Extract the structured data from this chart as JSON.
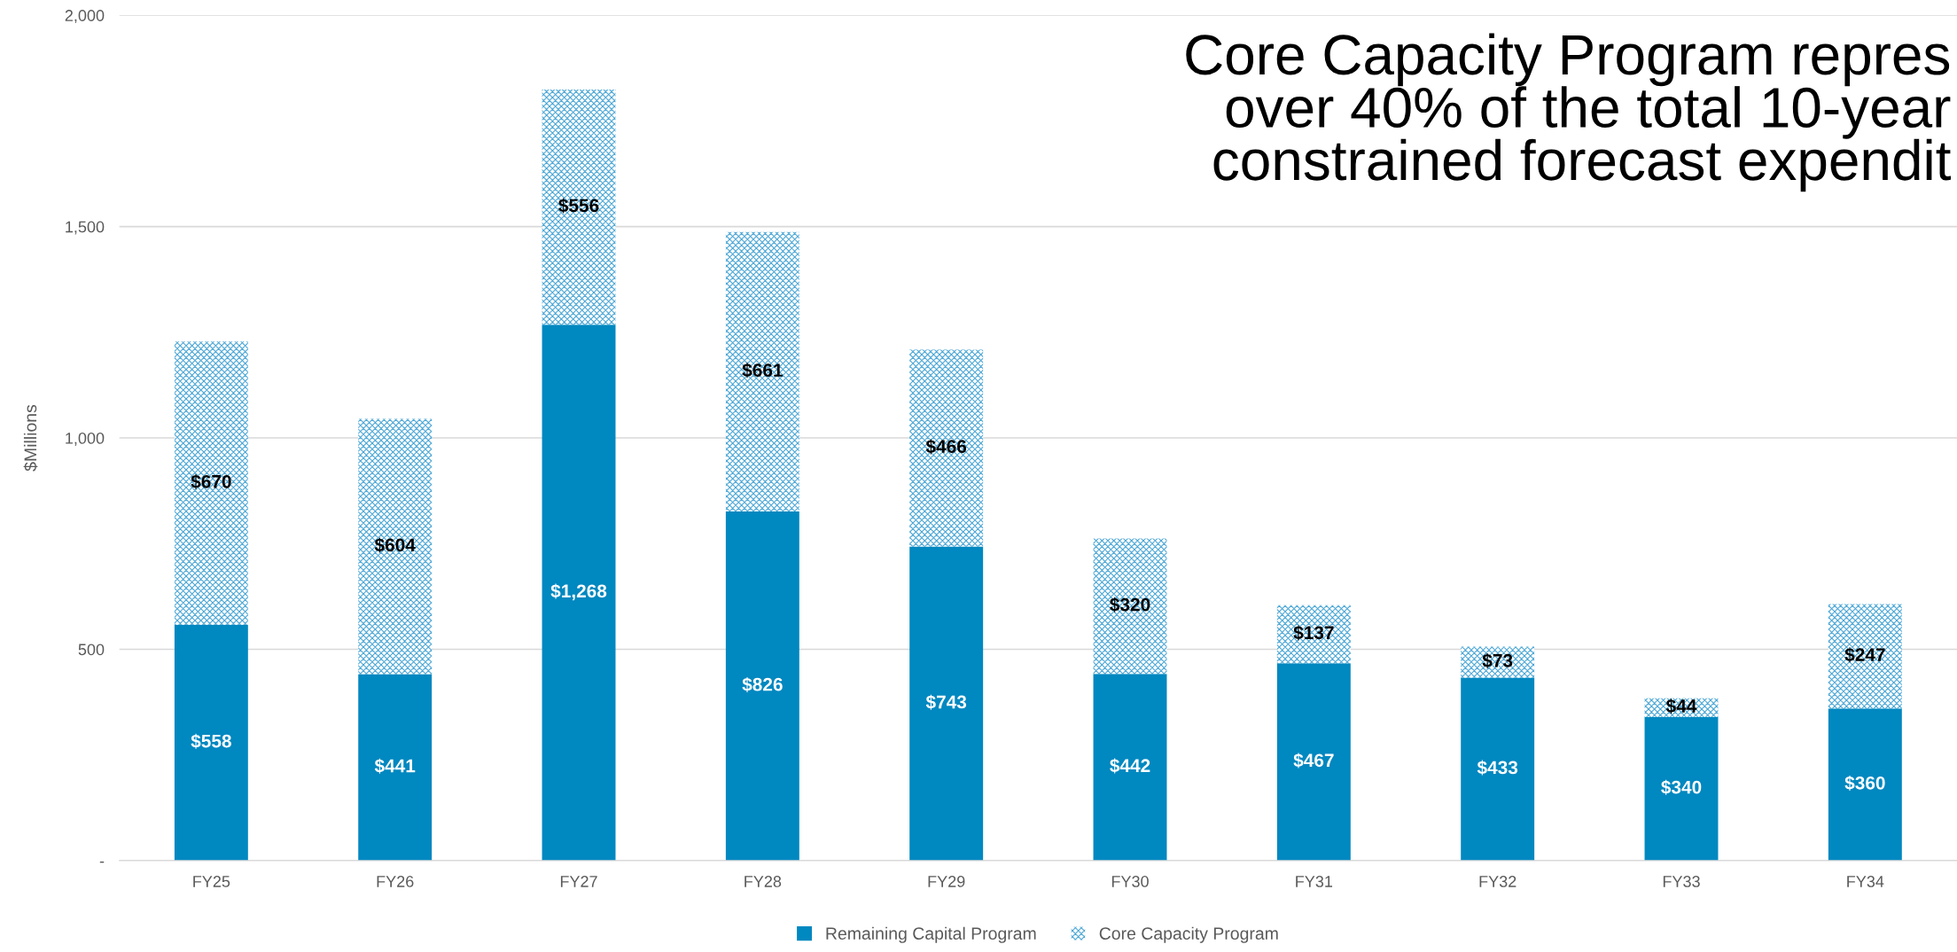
{
  "chart_data": {
    "type": "bar",
    "stacked": true,
    "ylabel": "$Millions",
    "categories": [
      "FY25",
      "FY26",
      "FY27",
      "FY28",
      "FY29",
      "FY30",
      "FY31",
      "FY32",
      "FY33",
      "FY34"
    ],
    "series": [
      {
        "name": "Remaining Capital Program",
        "color": "#0088c0",
        "values": [
          558,
          441,
          1268,
          826,
          743,
          442,
          467,
          433,
          340,
          360
        ],
        "value_labels": [
          "$558",
          "$441",
          "$1,268",
          "$826",
          "$743",
          "$442",
          "$467",
          "$433",
          "$340",
          "$360"
        ]
      },
      {
        "name": "Core Capacity Program",
        "color": "#4aa6d6",
        "values": [
          670,
          604,
          556,
          661,
          466,
          320,
          137,
          73,
          44,
          247
        ],
        "value_labels": [
          "$670",
          "$604",
          "$556",
          "$661",
          "$466",
          "$320",
          "$137",
          "$73",
          "$44",
          "$247"
        ]
      }
    ],
    "ylim": [
      0,
      2000
    ],
    "yticks": [
      {
        "value": 0,
        "label": "-"
      },
      {
        "value": 500,
        "label": "500"
      },
      {
        "value": 1000,
        "label": "1,000"
      },
      {
        "value": 1500,
        "label": "1,500"
      },
      {
        "value": 2000,
        "label": "2,000"
      }
    ],
    "grid": "y",
    "legend": "bottom",
    "annotations": [
      "Core Capacity Program repres\nover 40% of the total 10-year\nconstrained forecast expendit"
    ]
  }
}
